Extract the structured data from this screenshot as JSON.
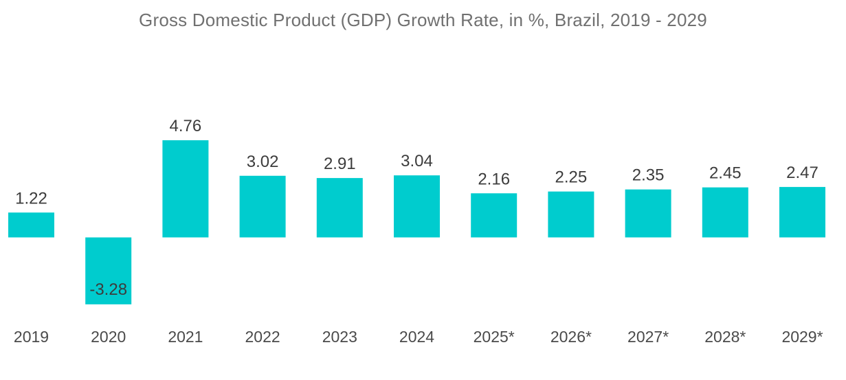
{
  "chart_data": {
    "type": "bar",
    "title": "Gross Domestic Product (GDP) Growth Rate, in %, Brazil, 2019 - 2029",
    "categories": [
      "2019",
      "2020",
      "2021",
      "2022",
      "2023",
      "2024",
      "2025*",
      "2026*",
      "2027*",
      "2028*",
      "2029*"
    ],
    "values": [
      1.22,
      -3.28,
      4.76,
      3.02,
      2.91,
      3.04,
      2.16,
      2.25,
      2.35,
      2.45,
      2.47
    ],
    "value_labels": [
      "1.22",
      "-3.28",
      "4.76",
      "3.02",
      "2.91",
      "3.04",
      "2.16",
      "2.25",
      "2.35",
      "2.45",
      "2.47"
    ],
    "xlabel": "",
    "ylabel": "",
    "grid": false,
    "legend": "none",
    "bar_color": "#00ccce"
  }
}
